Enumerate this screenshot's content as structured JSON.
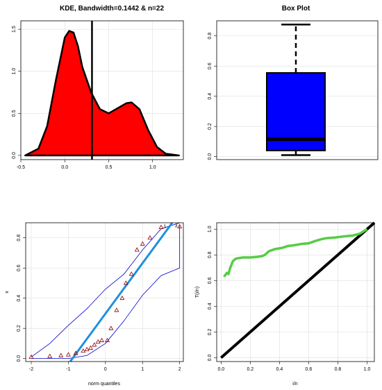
{
  "chart_data": [
    {
      "panel": "kde",
      "type": "area",
      "title": "KDE, Bandwidth=0.1442 & n=22",
      "x_ticks": [
        -0.5,
        0.0,
        0.5,
        1.0
      ],
      "y_ticks": [
        0.0,
        0.5,
        1.0,
        1.5
      ],
      "x_tick_labels": [
        "-0.5",
        "0.0",
        "0.5",
        "1.0"
      ],
      "y_tick_labels": [
        "0.0",
        "0.5",
        "1.0",
        "1.5"
      ],
      "xlim": [
        -0.5,
        1.35
      ],
      "ylim": [
        -0.05,
        1.6
      ],
      "density": {
        "x": [
          -0.45,
          -0.3,
          -0.2,
          -0.1,
          0.0,
          0.05,
          0.1,
          0.15,
          0.2,
          0.3,
          0.4,
          0.5,
          0.6,
          0.7,
          0.76,
          0.85,
          0.95,
          1.05,
          1.15,
          1.3
        ],
        "y": [
          0.0,
          0.08,
          0.35,
          0.9,
          1.4,
          1.48,
          1.46,
          1.3,
          1.05,
          0.75,
          0.55,
          0.5,
          0.56,
          0.62,
          0.63,
          0.55,
          0.3,
          0.1,
          0.02,
          0.0
        ]
      },
      "fill_color": "#ff0000",
      "vline_x": 0.31
    },
    {
      "panel": "box",
      "type": "box",
      "title": "Box Plot",
      "y_ticks": [
        0.0,
        0.2,
        0.4,
        0.6,
        0.8
      ],
      "y_tick_labels": [
        "0.0",
        "0.2",
        "0.4",
        "0.6",
        "0.8"
      ],
      "ylim": [
        -0.02,
        0.9
      ],
      "whisker_low": 0.01,
      "q1": 0.04,
      "median": 0.115,
      "q3": 0.555,
      "whisker_high": 0.875,
      "box_color": "#0000ff"
    },
    {
      "panel": "qq",
      "type": "scatter",
      "xlabel": "norm quantiles",
      "ylabel": "x",
      "x_ticks": [
        -2,
        -1,
        0,
        1,
        2
      ],
      "y_ticks": [
        0.0,
        0.2,
        0.4,
        0.6,
        0.8
      ],
      "x_tick_labels": [
        "-2",
        "-1",
        "0",
        "1",
        "2"
      ],
      "y_tick_labels": [
        "0.0",
        "0.2",
        "0.4",
        "0.6",
        "0.8"
      ],
      "xlim": [
        -2.15,
        2.1
      ],
      "ylim": [
        -0.02,
        0.9
      ],
      "points": {
        "x": [
          -2.0,
          -1.5,
          -1.2,
          -1.0,
          -0.8,
          -0.6,
          -0.5,
          -0.4,
          -0.3,
          -0.2,
          -0.1,
          0.05,
          0.15,
          0.3,
          0.45,
          0.55,
          0.7,
          0.85,
          1.0,
          1.2,
          1.5,
          2.0
        ],
        "y": [
          0.01,
          0.015,
          0.02,
          0.025,
          0.035,
          0.05,
          0.06,
          0.07,
          0.09,
          0.11,
          0.12,
          0.12,
          0.2,
          0.32,
          0.4,
          0.5,
          0.56,
          0.72,
          0.76,
          0.8,
          0.87,
          0.875
        ]
      },
      "point_labels": [
        "1",
        "3"
      ],
      "line": {
        "x": [
          -0.95,
          1.8
        ],
        "y": [
          -0.02,
          0.9
        ]
      },
      "band_upper": {
        "x": [
          -2.0,
          -1.5,
          -1.0,
          -0.5,
          0.0,
          0.5,
          1.0,
          1.5,
          2.0
        ],
        "y": [
          0.01,
          0.1,
          0.22,
          0.33,
          0.46,
          0.56,
          0.72,
          0.86,
          0.9
        ]
      },
      "band_lower": {
        "x": [
          -2.0,
          -1.5,
          -1.0,
          -0.5,
          0.0,
          0.5,
          1.0,
          1.5,
          2.0,
          2.0
        ],
        "y": [
          0.0,
          0.0,
          0.0,
          0.02,
          0.1,
          0.25,
          0.42,
          0.55,
          0.6,
          0.88
        ]
      },
      "point_color": "#8b0000",
      "line_color": "#1e90dd",
      "band_color": "#0000cc"
    },
    {
      "panel": "ttt",
      "type": "line",
      "xlabel": "i/n",
      "ylabel": "T(i/n)",
      "x_ticks": [
        0.0,
        0.2,
        0.4,
        0.6,
        0.8,
        1.0
      ],
      "y_ticks": [
        0.0,
        0.2,
        0.4,
        0.6,
        0.8,
        1.0
      ],
      "x_tick_labels": [
        "0.0",
        "0.2",
        "0.4",
        "0.6",
        "0.8",
        "1.0"
      ],
      "y_tick_labels": [
        "0.0",
        "0.2",
        "0.4",
        "0.6",
        "0.8",
        "1.0"
      ],
      "xlim": [
        -0.03,
        1.05
      ],
      "ylim": [
        -0.03,
        1.05
      ],
      "curve": {
        "x": [
          0.02,
          0.04,
          0.05,
          0.06,
          0.07,
          0.08,
          0.1,
          0.12,
          0.15,
          0.2,
          0.25,
          0.28,
          0.3,
          0.33,
          0.37,
          0.42,
          0.46,
          0.5,
          0.55,
          0.6,
          0.65,
          0.68,
          0.72,
          0.78,
          0.85,
          0.9,
          0.95,
          1.0
        ],
        "y": [
          0.63,
          0.66,
          0.65,
          0.69,
          0.72,
          0.75,
          0.77,
          0.775,
          0.78,
          0.78,
          0.785,
          0.79,
          0.8,
          0.83,
          0.845,
          0.855,
          0.87,
          0.875,
          0.885,
          0.89,
          0.91,
          0.92,
          0.93,
          0.935,
          0.945,
          0.95,
          0.965,
          1.0
        ]
      },
      "diag": {
        "x": [
          0.0,
          1.05
        ],
        "y": [
          0.0,
          1.05
        ]
      },
      "curve_color": "#55cc44",
      "diag_color": "#000000"
    }
  ]
}
